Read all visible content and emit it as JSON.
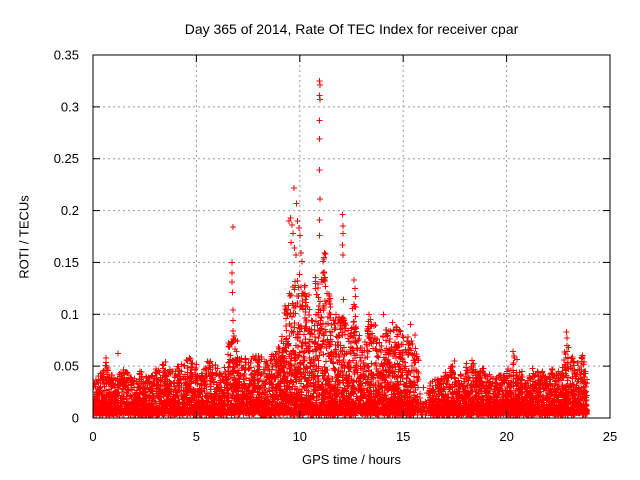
{
  "chart_data": {
    "type": "scatter",
    "title": "Day 365 of 2014, Rate Of TEC Index for receiver cpar",
    "xlabel": "GPS time / hours",
    "ylabel": "ROTI / TECUs",
    "xlim": [
      0,
      25
    ],
    "ylim": [
      0,
      0.35
    ],
    "xticks": [
      0,
      5,
      10,
      15,
      20,
      25
    ],
    "xtick_labels": [
      "0",
      "5",
      "10",
      "15",
      "20",
      "25"
    ],
    "yticks": [
      0,
      0.05,
      0.1,
      0.15,
      0.2,
      0.25,
      0.3,
      0.35
    ],
    "ytick_labels": [
      "0",
      "0.05",
      "0.1",
      "0.15",
      "0.2",
      "0.25",
      "0.3",
      "0.35"
    ],
    "grid": true,
    "grid_color": "#999999",
    "grid_dash": "2,3",
    "border_color": "#000000",
    "background_color": "#ffffff",
    "legend": false,
    "series_name": "ROTI",
    "marker": {
      "shape": "plus",
      "color": "#ff0000",
      "size": 7
    },
    "time_range": [
      0,
      23.9
    ],
    "envelope_step_hours": 0.25,
    "envelope_max_roti": [
      0.04,
      0.045,
      0.055,
      0.042,
      0.04,
      0.048,
      0.045,
      0.04,
      0.042,
      0.045,
      0.042,
      0.045,
      0.05,
      0.055,
      0.048,
      0.045,
      0.05,
      0.052,
      0.058,
      0.055,
      0.057,
      0.05,
      0.055,
      0.056,
      0.048,
      0.052,
      0.075,
      0.085,
      0.06,
      0.058,
      0.06,
      0.062,
      0.065,
      0.06,
      0.062,
      0.07,
      0.085,
      0.11,
      0.13,
      0.14,
      0.13,
      0.12,
      0.095,
      0.14,
      0.16,
      0.12,
      0.095,
      0.1,
      0.12,
      0.09,
      0.11,
      0.08,
      0.075,
      0.095,
      0.09,
      0.08,
      0.085,
      0.09,
      0.088,
      0.085,
      0.08,
      0.075,
      0.07,
      0.03,
      0.028,
      0.035,
      0.038,
      0.04,
      0.045,
      0.055,
      0.04,
      0.042,
      0.058,
      0.062,
      0.045,
      0.05,
      0.042,
      0.04,
      0.045,
      0.042,
      0.048,
      0.062,
      0.045,
      0.04,
      0.042,
      0.048,
      0.045,
      0.042,
      0.048,
      0.045,
      0.05,
      0.07,
      0.06,
      0.055,
      0.065,
      0.045
    ],
    "density": {
      "base": 70,
      "high": 95,
      "high_threshold": 0.085,
      "gap": 14,
      "gap_threshold": 0.031
    },
    "peaks": [
      [
        0.63,
        0.058
      ],
      [
        1.21,
        0.062
      ],
      [
        6.71,
        0.14
      ],
      [
        6.72,
        0.15
      ],
      [
        6.73,
        0.131
      ],
      [
        6.74,
        0.121
      ],
      [
        6.76,
        0.104
      ],
      [
        6.77,
        0.184
      ],
      [
        6.78,
        0.094
      ],
      [
        9.47,
        0.19
      ],
      [
        9.55,
        0.193
      ],
      [
        9.58,
        0.169
      ],
      [
        9.62,
        0.186
      ],
      [
        9.68,
        0.178
      ],
      [
        9.72,
        0.222
      ],
      [
        9.75,
        0.164
      ],
      [
        9.82,
        0.157
      ],
      [
        9.85,
        0.207
      ],
      [
        9.9,
        0.19
      ],
      [
        9.95,
        0.183
      ],
      [
        10.02,
        0.176
      ],
      [
        10.06,
        0.159
      ],
      [
        10.11,
        0.151
      ],
      [
        10.95,
        0.176
      ],
      [
        10.95,
        0.311
      ],
      [
        10.96,
        0.191
      ],
      [
        10.96,
        0.239
      ],
      [
        10.96,
        0.269
      ],
      [
        10.96,
        0.287
      ],
      [
        10.96,
        0.325
      ],
      [
        10.97,
        0.211
      ],
      [
        10.97,
        0.307
      ],
      [
        10.98,
        0.321
      ],
      [
        11.32,
        0.12
      ],
      [
        11.4,
        0.112
      ],
      [
        12.06,
        0.167
      ],
      [
        12.07,
        0.196
      ],
      [
        12.08,
        0.157
      ],
      [
        12.08,
        0.185
      ],
      [
        12.09,
        0.178
      ],
      [
        12.62,
        0.133
      ],
      [
        12.66,
        0.125
      ],
      [
        12.69,
        0.117
      ],
      [
        13.35,
        0.1
      ],
      [
        13.42,
        0.095
      ],
      [
        14.05,
        0.1
      ],
      [
        14.48,
        0.092
      ],
      [
        15.35,
        0.09
      ],
      [
        15.57,
        0.08
      ],
      [
        20.32,
        0.064
      ],
      [
        22.9,
        0.083
      ],
      [
        22.91,
        0.07
      ],
      [
        22.92,
        0.077
      ]
    ]
  }
}
